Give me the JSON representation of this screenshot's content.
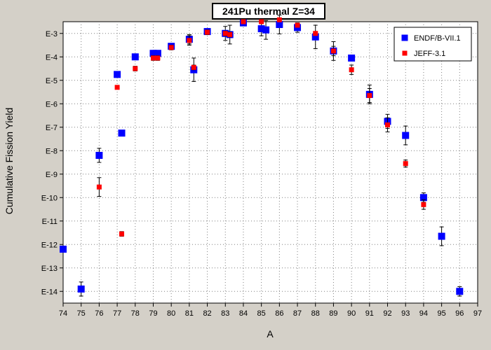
{
  "chart_data": {
    "type": "scatter",
    "title": "241Pu thermal Z=34",
    "xlabel": "A",
    "ylabel": "Cumulative Fission Yield",
    "xlim": [
      74,
      97
    ],
    "ylim_exponent": [
      -14.5,
      -2.5
    ],
    "y_scale": "log",
    "x_ticks": [
      "74",
      "75",
      "76",
      "77",
      "78",
      "79",
      "80",
      "81",
      "82",
      "83",
      "84",
      "85",
      "86",
      "87",
      "88",
      "89",
      "90",
      "91",
      "92",
      "93",
      "94",
      "95",
      "96",
      "97"
    ],
    "y_ticks": [
      {
        "label": "E-3",
        "exp": -3
      },
      {
        "label": "E-4",
        "exp": -4
      },
      {
        "label": "E-5",
        "exp": -5
      },
      {
        "label": "E-6",
        "exp": -6
      },
      {
        "label": "E-7",
        "exp": -7
      },
      {
        "label": "E-8",
        "exp": -8
      },
      {
        "label": "E-9",
        "exp": -9
      },
      {
        "label": "E-10",
        "exp": -10
      },
      {
        "label": "E-11",
        "exp": -11
      },
      {
        "label": "E-12",
        "exp": -12
      },
      {
        "label": "E-13",
        "exp": -13
      },
      {
        "label": "E-14",
        "exp": -14
      }
    ],
    "grid": true,
    "legend_position": "top-right",
    "series": [
      {
        "name": "ENDF/B-VII.1",
        "color": "#0000ff",
        "marker": "square-large",
        "points": [
          {
            "x": 74,
            "exp": -12.2,
            "err": 0
          },
          {
            "x": 75,
            "exp": -13.9,
            "err": 0.3
          },
          {
            "x": 76,
            "exp": -8.2,
            "err": 0.3
          },
          {
            "x": 77,
            "exp": -4.75,
            "err": 0
          },
          {
            "x": 77.25,
            "exp": -7.25,
            "err": 0.1
          },
          {
            "x": 78,
            "exp": -4.0,
            "err": 0
          },
          {
            "x": 79,
            "exp": -3.85,
            "err": 0.1
          },
          {
            "x": 79.25,
            "exp": -3.85,
            "err": 0.1
          },
          {
            "x": 80,
            "exp": -3.55,
            "err": 0.1
          },
          {
            "x": 81,
            "exp": -3.25,
            "err": 0.2
          },
          {
            "x": 81.25,
            "exp": -4.55,
            "err": 0.5
          },
          {
            "x": 82,
            "exp": -2.92,
            "err": 0.1
          },
          {
            "x": 83,
            "exp": -3.0,
            "err": 0.3
          },
          {
            "x": 83.25,
            "exp": -3.05,
            "err": 0.4
          },
          {
            "x": 84,
            "exp": -2.55,
            "err": 0.05
          },
          {
            "x": 85,
            "exp": -2.8,
            "err": 0.3
          },
          {
            "x": 85.25,
            "exp": -2.85,
            "err": 0.4
          },
          {
            "x": 86,
            "exp": -2.62,
            "err": 0.4
          },
          {
            "x": 87,
            "exp": -2.75,
            "err": 0.2
          },
          {
            "x": 88,
            "exp": -3.15,
            "err": 0.5
          },
          {
            "x": 89,
            "exp": -3.75,
            "err": 0.4
          },
          {
            "x": 90,
            "exp": -4.05,
            "err": 0
          },
          {
            "x": 91,
            "exp": -5.6,
            "err": 0.4
          },
          {
            "x": 92,
            "exp": -6.75,
            "err": 0.3
          },
          {
            "x": 93,
            "exp": -7.35,
            "err": 0.4
          },
          {
            "x": 94,
            "exp": -10.0,
            "err": 0.2
          },
          {
            "x": 95,
            "exp": -11.65,
            "err": 0.4
          },
          {
            "x": 96,
            "exp": -14.0,
            "err": 0.2
          }
        ]
      },
      {
        "name": "JEFF-3.1",
        "color": "#ff0000",
        "marker": "square-small",
        "points": [
          {
            "x": 76,
            "exp": -9.55,
            "err": 0.4
          },
          {
            "x": 77,
            "exp": -5.3,
            "err": 0
          },
          {
            "x": 77.25,
            "exp": -11.55,
            "err": 0.1
          },
          {
            "x": 78,
            "exp": -4.5,
            "err": 0.1
          },
          {
            "x": 79,
            "exp": -4.05,
            "err": 0.1
          },
          {
            "x": 79.25,
            "exp": -4.05,
            "err": 0.1
          },
          {
            "x": 80,
            "exp": -3.6,
            "err": 0.1
          },
          {
            "x": 81,
            "exp": -3.3,
            "err": 0.2
          },
          {
            "x": 81.25,
            "exp": -4.45,
            "err": 0.1
          },
          {
            "x": 82,
            "exp": -2.95,
            "err": 0.1
          },
          {
            "x": 83,
            "exp": -3.0,
            "err": 0.1
          },
          {
            "x": 83.25,
            "exp": -3.05,
            "err": 0.1
          },
          {
            "x": 84,
            "exp": -2.5,
            "err": 0.05
          },
          {
            "x": 85,
            "exp": -2.5,
            "err": 0.05
          },
          {
            "x": 86,
            "exp": -2.42,
            "err": 0.05
          },
          {
            "x": 87,
            "exp": -2.65,
            "err": 0.05
          },
          {
            "x": 88,
            "exp": -3.0,
            "err": 0.05
          },
          {
            "x": 89,
            "exp": -3.75,
            "err": 0.2
          },
          {
            "x": 90,
            "exp": -4.55,
            "err": 0.2
          },
          {
            "x": 91,
            "exp": -5.65,
            "err": 0.3
          },
          {
            "x": 92,
            "exp": -6.9,
            "err": 0.3
          },
          {
            "x": 93,
            "exp": -8.55,
            "err": 0.15
          },
          {
            "x": 94,
            "exp": -10.3,
            "err": 0.2
          }
        ]
      }
    ]
  }
}
